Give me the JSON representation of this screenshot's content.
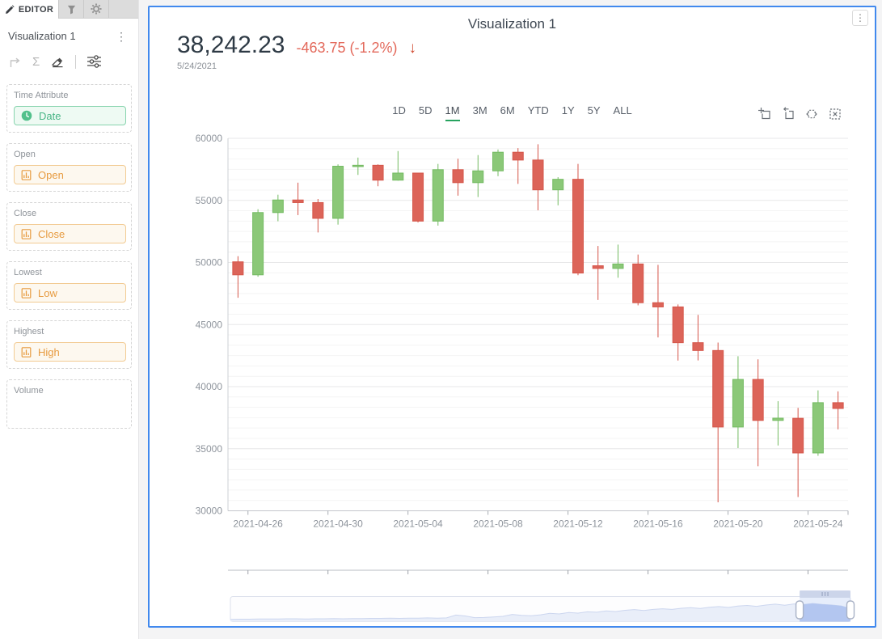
{
  "glyphs": {
    "kebab": "⋮",
    "sigma": "Σ",
    "down_arrow": "↓"
  },
  "colors": {
    "panel_border": "#4189ee",
    "up": "#8bc878",
    "up_border": "#74bb62",
    "down": "#dc6459",
    "down_border": "#d5564a",
    "range_active_underline": "#27a35f",
    "change_text": "#e3695b",
    "pill_green_text": "#48b586",
    "pill_orange_text": "#e79b40"
  },
  "sidebar": {
    "tabs": {
      "active_label": "EDITOR",
      "icon_tabs": [
        "filter-icon",
        "gear-icon"
      ]
    },
    "visualization_title": "Visualization 1",
    "toolbar_icons": [
      "corner-arrow-icon",
      "sigma-icon",
      "eraser-icon",
      "sliders-icon"
    ],
    "wells": [
      {
        "label": "Time Attribute",
        "field": "Date",
        "kind": "time"
      },
      {
        "label": "Open",
        "field": "Open",
        "kind": "measure"
      },
      {
        "label": "Close",
        "field": "Close",
        "kind": "measure"
      },
      {
        "label": "Lowest",
        "field": "Low",
        "kind": "measure"
      },
      {
        "label": "Highest",
        "field": "High",
        "kind": "measure"
      },
      {
        "label": "Volume",
        "field": "",
        "kind": "empty"
      }
    ]
  },
  "panel": {
    "title": "Visualization 1",
    "price": "38,242.23",
    "change": "-463.75 (-1.2%)",
    "date": "5/24/2021",
    "range_options": [
      "1D",
      "5D",
      "1M",
      "3M",
      "6M",
      "YTD",
      "1Y",
      "5Y",
      "ALL"
    ],
    "range_active": "1M",
    "toolbox_icons": [
      "box-zoom-icon",
      "zoom-back-icon",
      "pan-icon",
      "clear-selection-icon"
    ]
  },
  "chart_data": {
    "type": "candlestick",
    "title": "Visualization 1",
    "xlabel": "",
    "ylabel": "",
    "ylim": [
      30000,
      60000
    ],
    "y_ticks": [
      30000,
      35000,
      40000,
      45000,
      50000,
      55000,
      60000
    ],
    "y_minor_per_major": 6,
    "grid": true,
    "x_axis_labels": [
      {
        "index": 1,
        "label": "2021-04-26"
      },
      {
        "index": 5,
        "label": "2021-04-30"
      },
      {
        "index": 9,
        "label": "2021-05-04"
      },
      {
        "index": 13,
        "label": "2021-05-08"
      },
      {
        "index": 17,
        "label": "2021-05-12"
      },
      {
        "index": 21,
        "label": "2021-05-16"
      },
      {
        "index": 25,
        "label": "2021-05-20"
      },
      {
        "index": 29,
        "label": "2021-05-24"
      }
    ],
    "candles": [
      {
        "date": "2021-04-25",
        "open": 50052,
        "close": 49004,
        "low": 47159,
        "high": 50506
      },
      {
        "date": "2021-04-26",
        "open": 49004,
        "close": 54021,
        "low": 48852,
        "high": 54288
      },
      {
        "date": "2021-04-27",
        "open": 54021,
        "close": 55033,
        "low": 53319,
        "high": 55460
      },
      {
        "date": "2021-04-28",
        "open": 55033,
        "close": 54824,
        "low": 53813,
        "high": 56428
      },
      {
        "date": "2021-04-29",
        "open": 54824,
        "close": 53555,
        "low": 52418,
        "high": 55115
      },
      {
        "date": "2021-04-30",
        "open": 53555,
        "close": 57750,
        "low": 53050,
        "high": 57900
      },
      {
        "date": "2021-05-01",
        "open": 57750,
        "close": 57828,
        "low": 57052,
        "high": 58448
      },
      {
        "date": "2021-05-02",
        "open": 57828,
        "close": 56631,
        "low": 56141,
        "high": 57902
      },
      {
        "date": "2021-05-03",
        "open": 56631,
        "close": 57200,
        "low": 56590,
        "high": 58973
      },
      {
        "date": "2021-05-04",
        "open": 57200,
        "close": 53333,
        "low": 53222,
        "high": 57212
      },
      {
        "date": "2021-05-05",
        "open": 53333,
        "close": 57473,
        "low": 52969,
        "high": 57939
      },
      {
        "date": "2021-05-06",
        "open": 57473,
        "close": 56430,
        "low": 55380,
        "high": 58360
      },
      {
        "date": "2021-05-07",
        "open": 56430,
        "close": 57380,
        "low": 55270,
        "high": 58650
      },
      {
        "date": "2021-05-08",
        "open": 57380,
        "close": 58880,
        "low": 56950,
        "high": 59100
      },
      {
        "date": "2021-05-09",
        "open": 58880,
        "close": 58250,
        "low": 56330,
        "high": 59210
      },
      {
        "date": "2021-05-10",
        "open": 58250,
        "close": 55850,
        "low": 54200,
        "high": 59520
      },
      {
        "date": "2021-05-11",
        "open": 55850,
        "close": 56700,
        "low": 54600,
        "high": 56870
      },
      {
        "date": "2021-05-12",
        "open": 56700,
        "close": 49150,
        "low": 48970,
        "high": 57940
      },
      {
        "date": "2021-05-13",
        "open": 49735,
        "close": 49520,
        "low": 46980,
        "high": 51330
      },
      {
        "date": "2021-05-14",
        "open": 49520,
        "close": 49880,
        "low": 48770,
        "high": 51440
      },
      {
        "date": "2021-05-15",
        "open": 49880,
        "close": 46760,
        "low": 46550,
        "high": 50640
      },
      {
        "date": "2021-05-16",
        "open": 46760,
        "close": 46420,
        "low": 43963,
        "high": 49808
      },
      {
        "date": "2021-05-17",
        "open": 46420,
        "close": 43540,
        "low": 42100,
        "high": 46620
      },
      {
        "date": "2021-05-18",
        "open": 43540,
        "close": 42910,
        "low": 42110,
        "high": 45780
      },
      {
        "date": "2021-05-19",
        "open": 42910,
        "close": 36750,
        "low": 30680,
        "high": 43550
      },
      {
        "date": "2021-05-20",
        "open": 36750,
        "close": 40580,
        "low": 35050,
        "high": 42450
      },
      {
        "date": "2021-05-21",
        "open": 40580,
        "close": 37280,
        "low": 33590,
        "high": 42200
      },
      {
        "date": "2021-05-22",
        "open": 37280,
        "close": 37460,
        "low": 35260,
        "high": 38830
      },
      {
        "date": "2021-05-23",
        "open": 37450,
        "close": 34660,
        "low": 31110,
        "high": 38290
      },
      {
        "date": "2021-05-24",
        "open": 34660,
        "close": 38706,
        "low": 34430,
        "high": 39700
      },
      {
        "date": "2021-05-25",
        "open": 38706,
        "close": 38242.23,
        "low": 36560,
        "high": 39620
      }
    ]
  },
  "navigator": {
    "window": [
      0.918,
      1.0
    ],
    "shadow": [
      0.1,
      0.11,
      0.11,
      0.12,
      0.12,
      0.12,
      0.13,
      0.13,
      0.12,
      0.13,
      0.13,
      0.14,
      0.13,
      0.14,
      0.14,
      0.15,
      0.15,
      0.16,
      0.15,
      0.16,
      0.16,
      0.17,
      0.16,
      0.17,
      0.3,
      0.26,
      0.18,
      0.19,
      0.21,
      0.24,
      0.33,
      0.29,
      0.27,
      0.31,
      0.38,
      0.35,
      0.42,
      0.39,
      0.45,
      0.43,
      0.49,
      0.46,
      0.52,
      0.55,
      0.51,
      0.56,
      0.59,
      0.56,
      0.61,
      0.64,
      0.6,
      0.66,
      0.69,
      0.65,
      0.71,
      0.74,
      0.7,
      0.76,
      0.8,
      0.75,
      0.81,
      0.78,
      0.83,
      0.79,
      0.76,
      0.72,
      0.6
    ]
  }
}
